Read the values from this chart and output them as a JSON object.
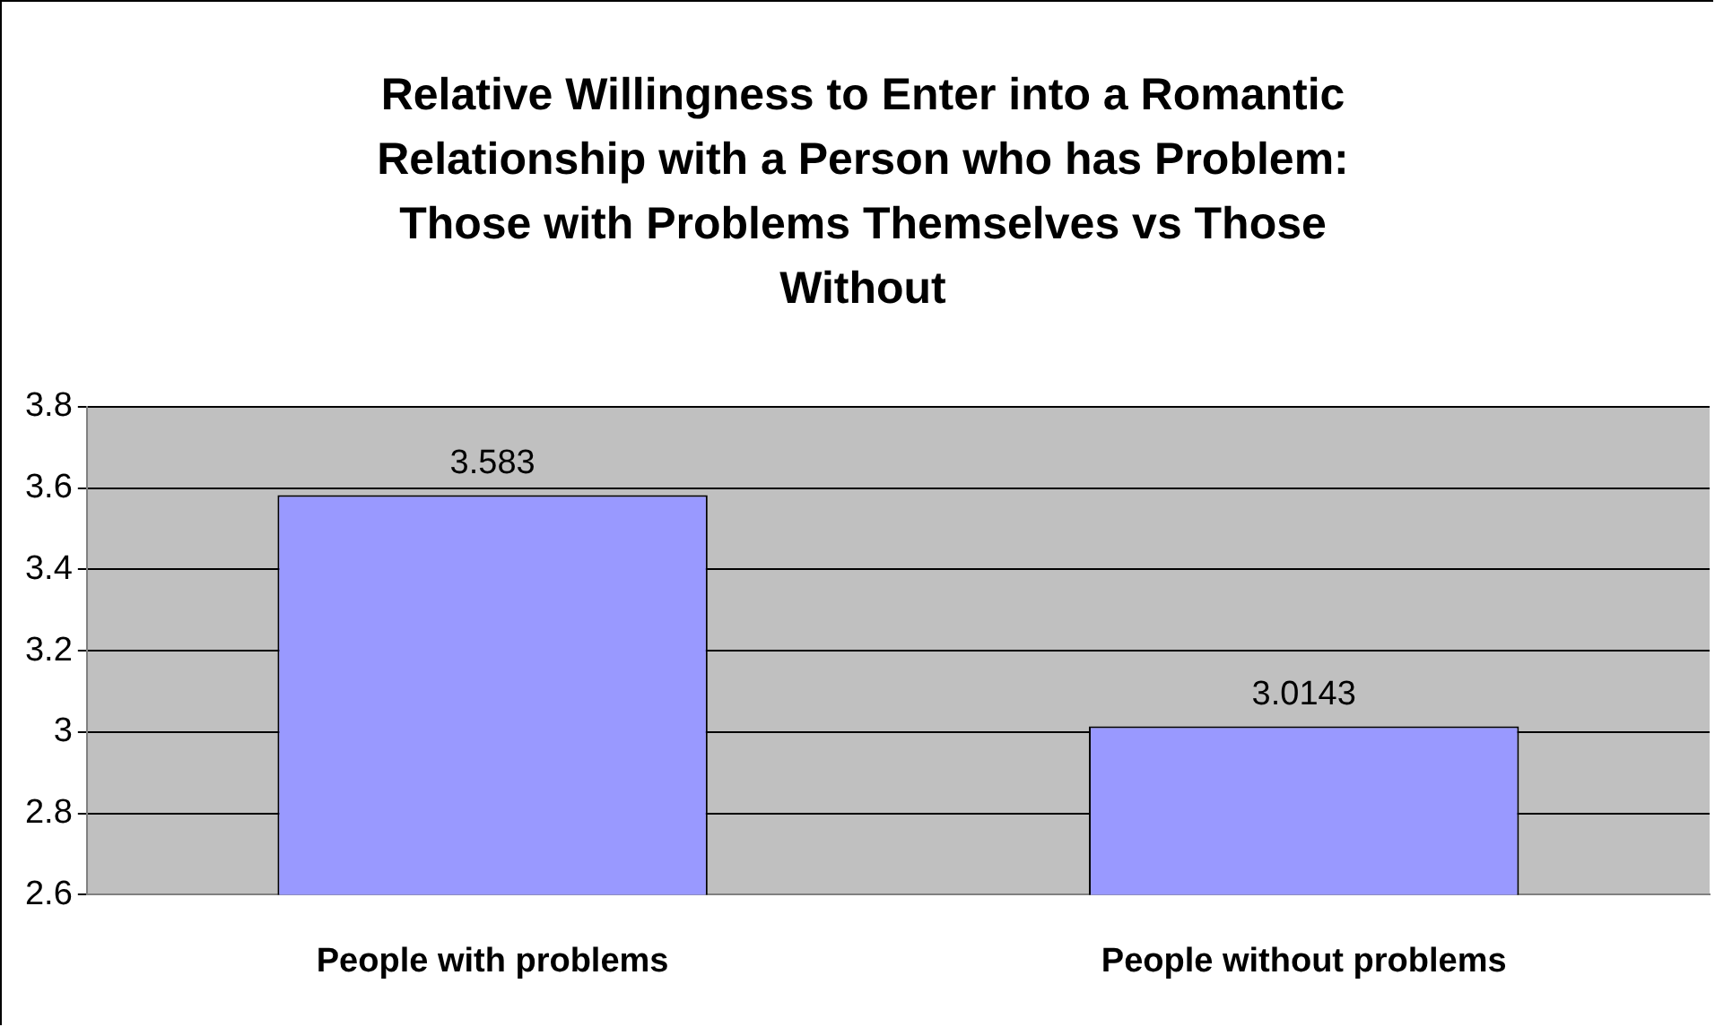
{
  "chart_data": {
    "type": "bar",
    "title": "Relative Willingness to Enter into a Romantic Relationship with a Person who has Problem: Those with Problems Themselves vs Those Without",
    "categories": [
      "People with problems",
      "People without problems"
    ],
    "values": [
      3.583,
      3.0143
    ],
    "color": "#9999ff",
    "ylim": [
      2.6,
      3.8
    ],
    "yticks": [
      2.6,
      2.8,
      3,
      3.2,
      3.4,
      3.6,
      3.8
    ],
    "grid": "y",
    "data_labels": true
  }
}
